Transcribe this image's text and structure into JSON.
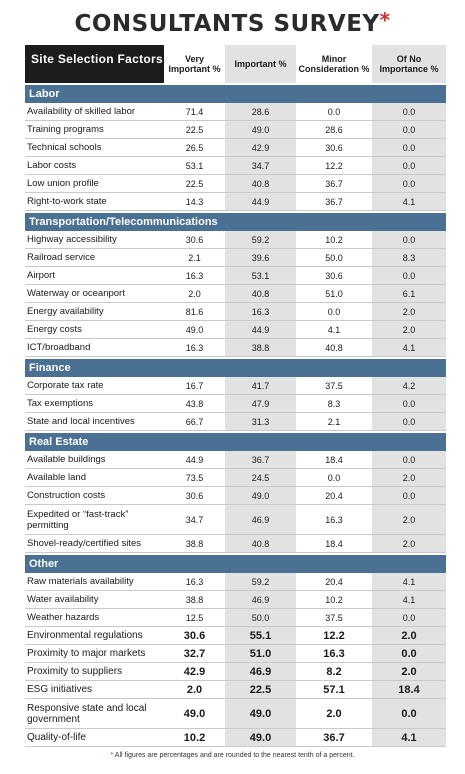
{
  "title": "CONSULTANTS SURVEY",
  "title_mark": "*",
  "header": {
    "factor_label": "Site Selection Factors",
    "col1": "Very Important %",
    "col2": "Important %",
    "col3": "Minor Consideration %",
    "col4": "Of No Importance %"
  },
  "sections": [
    {
      "name": "Labor",
      "rows": [
        {
          "factor": "Availability of skilled labor",
          "v": [
            "71.4",
            "28.6",
            "0.0",
            "0.0"
          ]
        },
        {
          "factor": "Training programs",
          "v": [
            "22.5",
            "49.0",
            "28.6",
            "0.0"
          ]
        },
        {
          "factor": "Technical schools",
          "v": [
            "26.5",
            "42.9",
            "30.6",
            "0.0"
          ]
        },
        {
          "factor": "Labor costs",
          "v": [
            "53.1",
            "34.7",
            "12.2",
            "0.0"
          ]
        },
        {
          "factor": "Low union profile",
          "v": [
            "22.5",
            "40.8",
            "36.7",
            "0.0"
          ]
        },
        {
          "factor": "Right-to-work state",
          "v": [
            "14.3",
            "44.9",
            "36.7",
            "4.1"
          ]
        }
      ]
    },
    {
      "name": "Transportation/Telecommunications",
      "rows": [
        {
          "factor": "Highway accessibility",
          "v": [
            "30.6",
            "59.2",
            "10.2",
            "0.0"
          ]
        },
        {
          "factor": "Railroad service",
          "v": [
            "2.1",
            "39.6",
            "50.0",
            "8.3"
          ]
        },
        {
          "factor": "Airport",
          "v": [
            "16.3",
            "53.1",
            "30.6",
            "0.0"
          ]
        },
        {
          "factor": "Waterway or oceanport",
          "v": [
            "2.0",
            "40.8",
            "51.0",
            "6.1"
          ]
        },
        {
          "factor": "Energy availability",
          "v": [
            "81.6",
            "16.3",
            "0.0",
            "2.0"
          ]
        },
        {
          "factor": "Energy costs",
          "v": [
            "49.0",
            "44.9",
            "4.1",
            "2.0"
          ]
        },
        {
          "factor": "ICT/broadband",
          "v": [
            "16.3",
            "38.8",
            "40.8",
            "4.1"
          ]
        }
      ]
    },
    {
      "name": "Finance",
      "rows": [
        {
          "factor": "Corporate tax rate",
          "v": [
            "16.7",
            "41.7",
            "37.5",
            "4.2"
          ]
        },
        {
          "factor": "Tax exemptions",
          "v": [
            "43.8",
            "47.9",
            "8.3",
            "0.0"
          ]
        },
        {
          "factor": "State and local incentives",
          "v": [
            "66.7",
            "31.3",
            "2.1",
            "0.0"
          ]
        }
      ]
    },
    {
      "name": "Real Estate",
      "rows": [
        {
          "factor": "Available buildings",
          "v": [
            "44.9",
            "36.7",
            "18.4",
            "0.0"
          ]
        },
        {
          "factor": "Available land",
          "v": [
            "73.5",
            "24.5",
            "0.0",
            "2.0"
          ]
        },
        {
          "factor": "Construction costs",
          "v": [
            "30.6",
            "49.0",
            "20.4",
            "0.0"
          ]
        },
        {
          "factor": "Expedited or “fast-track” permitting",
          "v": [
            "34.7",
            "46.9",
            "16.3",
            "2.0"
          ],
          "tall": true
        },
        {
          "factor": "Shovel-ready/certified sites",
          "v": [
            "38.8",
            "40.8",
            "18.4",
            "2.0"
          ]
        }
      ]
    },
    {
      "name": "Other",
      "rows": [
        {
          "factor": "Raw materials availability",
          "v": [
            "16.3",
            "59.2",
            "20.4",
            "4.1"
          ]
        },
        {
          "factor": "Water availability",
          "v": [
            "38.8",
            "46.9",
            "10.2",
            "4.1"
          ]
        },
        {
          "factor": "Weather hazards",
          "v": [
            "12.5",
            "50.0",
            "37.5",
            "0.0"
          ]
        },
        {
          "factor": "Environmental regulations",
          "v": [
            "30.6",
            "55.1",
            "12.2",
            "2.0"
          ],
          "big": true
        },
        {
          "factor": "Proximity to major markets",
          "v": [
            "32.7",
            "51.0",
            "16.3",
            "0.0"
          ],
          "big": true
        },
        {
          "factor": "Proximity to suppliers",
          "v": [
            "42.9",
            "46.9",
            "8.2",
            "2.0"
          ],
          "big": true
        },
        {
          "factor": "ESG initiatives",
          "v": [
            "2.0",
            "22.5",
            "57.1",
            "18.4"
          ],
          "big": true
        },
        {
          "factor": "Responsive state and local government",
          "v": [
            "49.0",
            "49.0",
            "2.0",
            "0.0"
          ],
          "big": true,
          "tall": true
        },
        {
          "factor": "Quality-of-life",
          "v": [
            "10.2",
            "49.0",
            "36.7",
            "4.1"
          ],
          "big": true
        }
      ]
    }
  ],
  "footnote_mark": "*",
  "footnote": "All figures are percentages and are rounded to the nearest tenth of a percent."
}
